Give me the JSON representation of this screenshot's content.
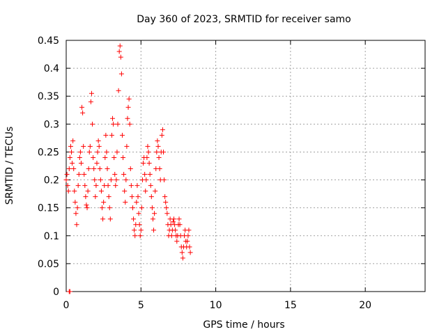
{
  "chart_data": {
    "type": "scatter",
    "title": "Day 360 of 2023, SRMTID for receiver samo",
    "xlabel": "GPS time / hours",
    "ylabel": "SRMTID / TECUs",
    "xlim": [
      0,
      24
    ],
    "ylim": [
      0,
      0.45
    ],
    "xticks": [
      0,
      5,
      10,
      15,
      20
    ],
    "xtick_labels": [
      "0",
      "5",
      "10",
      "15",
      "20"
    ],
    "yticks": [
      0,
      0.05,
      0.1,
      0.15,
      0.2,
      0.25,
      0.3,
      0.35,
      0.4,
      0.45
    ],
    "ytick_labels": [
      "0",
      "0.05",
      "0.1",
      "0.15",
      "0.2",
      "0.25",
      "0.3",
      "0.35",
      "0.4",
      "0.45"
    ],
    "grid": true,
    "marker": "plus",
    "color": "#ff0000",
    "series": [
      {
        "name": "SRMTID",
        "points": [
          [
            0.0,
            0.2
          ],
          [
            0.05,
            0.21
          ],
          [
            0.1,
            0.19
          ],
          [
            0.15,
            0.18
          ],
          [
            0.2,
            0.22
          ],
          [
            0.25,
            0.24
          ],
          [
            0.3,
            0.26
          ],
          [
            0.35,
            0.25
          ],
          [
            0.4,
            0.23
          ],
          [
            0.45,
            0.27
          ],
          [
            0.5,
            0.22
          ],
          [
            0.55,
            0.18
          ],
          [
            0.6,
            0.16
          ],
          [
            0.65,
            0.14
          ],
          [
            0.7,
            0.12
          ],
          [
            0.75,
            0.15
          ],
          [
            0.8,
            0.19
          ],
          [
            0.85,
            0.21
          ],
          [
            0.9,
            0.24
          ],
          [
            0.95,
            0.25
          ],
          [
            1.0,
            0.23
          ],
          [
            1.05,
            0.33
          ],
          [
            1.1,
            0.32
          ],
          [
            1.15,
            0.26
          ],
          [
            1.2,
            0.21
          ],
          [
            1.25,
            0.19
          ],
          [
            1.3,
            0.17
          ],
          [
            1.35,
            0.155
          ],
          [
            1.4,
            0.15
          ],
          [
            1.45,
            0.18
          ],
          [
            1.5,
            0.22
          ],
          [
            1.55,
            0.25
          ],
          [
            1.6,
            0.26
          ],
          [
            1.65,
            0.34
          ],
          [
            1.7,
            0.355
          ],
          [
            1.75,
            0.3
          ],
          [
            1.8,
            0.24
          ],
          [
            1.85,
            0.22
          ],
          [
            1.9,
            0.2
          ],
          [
            1.95,
            0.17
          ],
          [
            2.0,
            0.19
          ],
          [
            2.05,
            0.23
          ],
          [
            2.1,
            0.25
          ],
          [
            2.15,
            0.27
          ],
          [
            2.2,
            0.26
          ],
          [
            2.25,
            0.22
          ],
          [
            2.3,
            0.2
          ],
          [
            2.35,
            0.18
          ],
          [
            2.4,
            0.15
          ],
          [
            2.45,
            0.13
          ],
          [
            2.5,
            0.16
          ],
          [
            2.55,
            0.19
          ],
          [
            2.6,
            0.24
          ],
          [
            2.65,
            0.28
          ],
          [
            2.7,
            0.25
          ],
          [
            2.75,
            0.22
          ],
          [
            2.8,
            0.19
          ],
          [
            2.85,
            0.17
          ],
          [
            2.9,
            0.15
          ],
          [
            2.95,
            0.13
          ],
          [
            3.0,
            0.2
          ],
          [
            3.05,
            0.28
          ],
          [
            3.1,
            0.31
          ],
          [
            3.15,
            0.3
          ],
          [
            3.2,
            0.24
          ],
          [
            3.25,
            0.21
          ],
          [
            3.3,
            0.19
          ],
          [
            3.35,
            0.2
          ],
          [
            3.4,
            0.25
          ],
          [
            3.45,
            0.3
          ],
          [
            3.5,
            0.36
          ],
          [
            3.55,
            0.43
          ],
          [
            3.6,
            0.44
          ],
          [
            3.65,
            0.42
          ],
          [
            3.7,
            0.39
          ],
          [
            3.75,
            0.28
          ],
          [
            3.8,
            0.24
          ],
          [
            3.85,
            0.21
          ],
          [
            3.9,
            0.18
          ],
          [
            3.95,
            0.16
          ],
          [
            4.0,
            0.2
          ],
          [
            4.05,
            0.26
          ],
          [
            4.1,
            0.31
          ],
          [
            4.15,
            0.33
          ],
          [
            4.2,
            0.345
          ],
          [
            4.25,
            0.3
          ],
          [
            4.3,
            0.22
          ],
          [
            4.35,
            0.19
          ],
          [
            4.4,
            0.17
          ],
          [
            4.45,
            0.15
          ],
          [
            4.5,
            0.13
          ],
          [
            4.55,
            0.11
          ],
          [
            4.6,
            0.1
          ],
          [
            4.65,
            0.12
          ],
          [
            4.7,
            0.16
          ],
          [
            4.75,
            0.19
          ],
          [
            4.8,
            0.17
          ],
          [
            4.85,
            0.14
          ],
          [
            4.9,
            0.12
          ],
          [
            4.95,
            0.1
          ],
          [
            5.0,
            0.11
          ],
          [
            5.05,
            0.15
          ],
          [
            5.1,
            0.2
          ],
          [
            5.15,
            0.23
          ],
          [
            5.2,
            0.24
          ],
          [
            5.25,
            0.21
          ],
          [
            5.3,
            0.18
          ],
          [
            5.35,
            0.2
          ],
          [
            5.4,
            0.24
          ],
          [
            5.45,
            0.26
          ],
          [
            5.5,
            0.25
          ],
          [
            5.55,
            0.23
          ],
          [
            5.6,
            0.21
          ],
          [
            5.65,
            0.19
          ],
          [
            5.7,
            0.17
          ],
          [
            5.75,
            0.15
          ],
          [
            5.8,
            0.13
          ],
          [
            5.85,
            0.11
          ],
          [
            5.9,
            0.14
          ],
          [
            5.95,
            0.18
          ],
          [
            6.0,
            0.22
          ],
          [
            6.05,
            0.25
          ],
          [
            6.1,
            0.27
          ],
          [
            6.15,
            0.26
          ],
          [
            6.2,
            0.24
          ],
          [
            6.25,
            0.22
          ],
          [
            6.3,
            0.2
          ],
          [
            6.35,
            0.25
          ],
          [
            6.4,
            0.28
          ],
          [
            6.45,
            0.29
          ],
          [
            6.5,
            0.25
          ],
          [
            6.55,
            0.2
          ],
          [
            6.6,
            0.17
          ],
          [
            6.65,
            0.16
          ],
          [
            6.7,
            0.15
          ],
          [
            6.75,
            0.14
          ],
          [
            6.8,
            0.12
          ],
          [
            6.85,
            0.1
          ],
          [
            6.9,
            0.11
          ],
          [
            6.95,
            0.13
          ],
          [
            7.0,
            0.12
          ],
          [
            7.05,
            0.1
          ],
          [
            7.1,
            0.11
          ],
          [
            7.15,
            0.125
          ],
          [
            7.2,
            0.13
          ],
          [
            7.25,
            0.12
          ],
          [
            7.3,
            0.11
          ],
          [
            7.35,
            0.1
          ],
          [
            7.4,
            0.09
          ],
          [
            7.45,
            0.1
          ],
          [
            7.5,
            0.12
          ],
          [
            7.55,
            0.13
          ],
          [
            7.6,
            0.12
          ],
          [
            7.65,
            0.1
          ],
          [
            7.7,
            0.08
          ],
          [
            7.75,
            0.07
          ],
          [
            7.8,
            0.06
          ],
          [
            7.85,
            0.08
          ],
          [
            7.9,
            0.1
          ],
          [
            7.95,
            0.11
          ],
          [
            8.0,
            0.09
          ],
          [
            8.05,
            0.08
          ],
          [
            8.1,
            0.09
          ],
          [
            8.15,
            0.1
          ],
          [
            8.2,
            0.11
          ],
          [
            8.25,
            0.08
          ],
          [
            8.3,
            0.07
          ],
          [
            0.2,
            0.0
          ],
          [
            0.25,
            0.0
          ]
        ]
      }
    ]
  }
}
